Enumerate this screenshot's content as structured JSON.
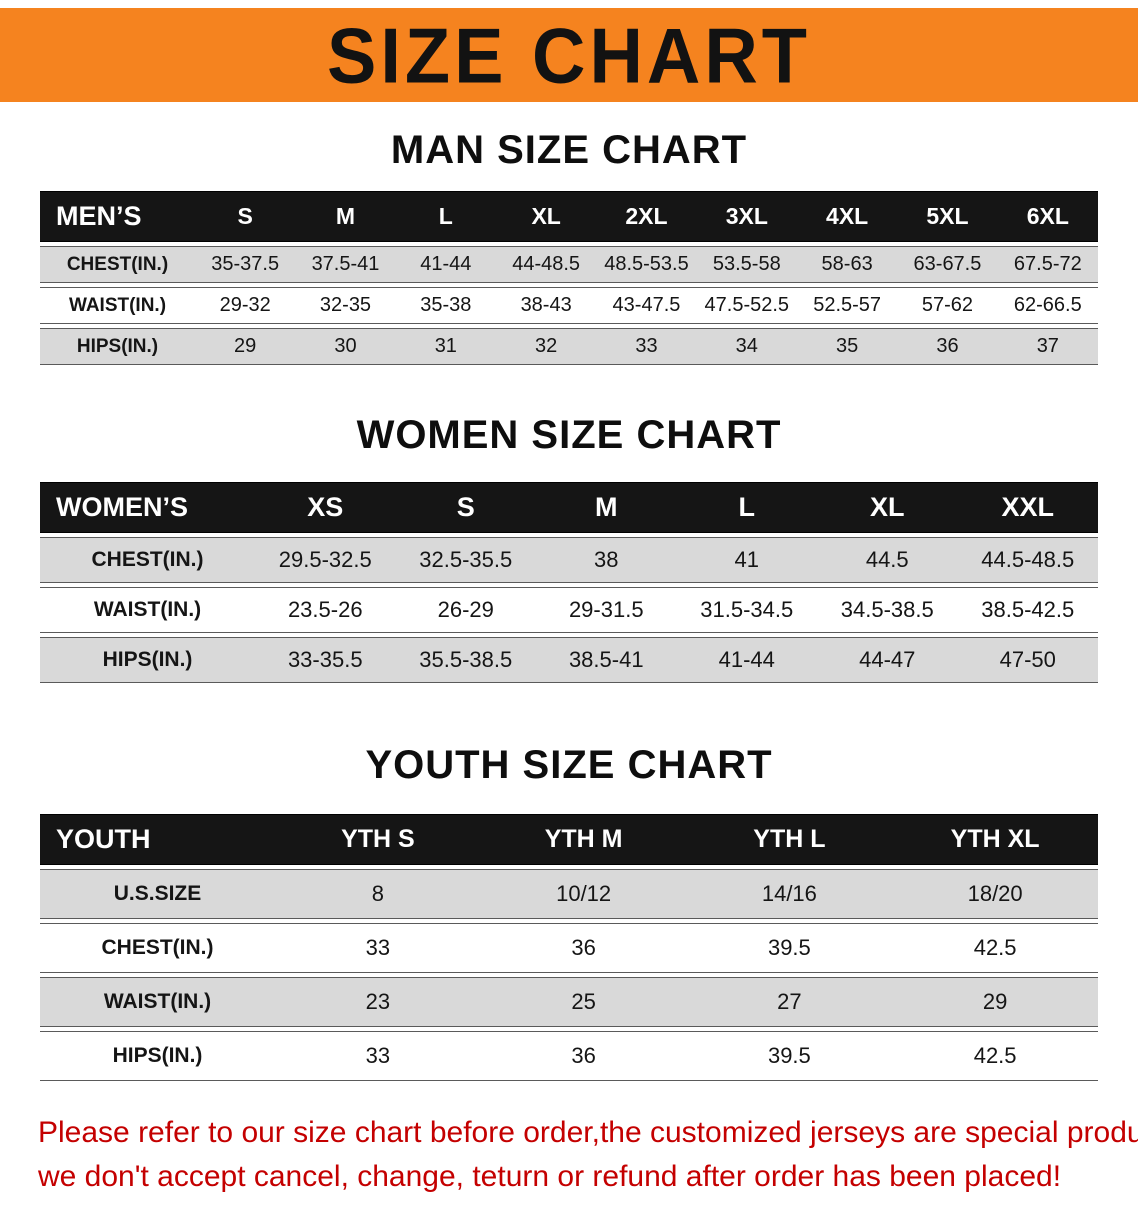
{
  "banner": {
    "title": "SIZE CHART"
  },
  "colors": {
    "banner_bg": "#f5831f",
    "table_header_bg": "#151515",
    "row_alt_bg": "#d9d9d9",
    "note_text": "#c40000"
  },
  "men": {
    "heading": "MAN SIZE CHART",
    "corner": "MEN’S",
    "columns": [
      "S",
      "M",
      "L",
      "XL",
      "2XL",
      "3XL",
      "4XL",
      "5XL",
      "6XL"
    ],
    "rows": [
      {
        "label": "CHEST(IN.)",
        "values": [
          "35-37.5",
          "37.5-41",
          "41-44",
          "44-48.5",
          "48.5-53.5",
          "53.5-58",
          "58-63",
          "63-67.5",
          "67.5-72"
        ]
      },
      {
        "label": "WAIST(IN.)",
        "values": [
          "29-32",
          "32-35",
          "35-38",
          "38-43",
          "43-47.5",
          "47.5-52.5",
          "52.5-57",
          "57-62",
          "62-66.5"
        ]
      },
      {
        "label": "HIPS(IN.)",
        "values": [
          "29",
          "30",
          "31",
          "32",
          "33",
          "34",
          "35",
          "36",
          "37"
        ]
      }
    ]
  },
  "women": {
    "heading": "WOMEN SIZE CHART",
    "corner": "WOMEN’S",
    "columns": [
      "XS",
      "S",
      "M",
      "L",
      "XL",
      "XXL"
    ],
    "rows": [
      {
        "label": "CHEST(IN.)",
        "values": [
          "29.5-32.5",
          "32.5-35.5",
          "38",
          "41",
          "44.5",
          "44.5-48.5"
        ]
      },
      {
        "label": "WAIST(IN.)",
        "values": [
          "23.5-26",
          "26-29",
          "29-31.5",
          "31.5-34.5",
          "34.5-38.5",
          "38.5-42.5"
        ]
      },
      {
        "label": "HIPS(IN.)",
        "values": [
          "33-35.5",
          "35.5-38.5",
          "38.5-41",
          "41-44",
          "44-47",
          "47-50"
        ]
      }
    ]
  },
  "youth": {
    "heading": "YOUTH SIZE CHART",
    "corner": "YOUTH",
    "columns": [
      "YTH S",
      "YTH M",
      "YTH L",
      "YTH XL"
    ],
    "rows": [
      {
        "label": "U.S.SIZE",
        "values": [
          "8",
          "10/12",
          "14/16",
          "18/20"
        ]
      },
      {
        "label": "CHEST(IN.)",
        "values": [
          "33",
          "36",
          "39.5",
          "42.5"
        ]
      },
      {
        "label": "WAIST(IN.)",
        "values": [
          "23",
          "25",
          "27",
          "29"
        ]
      },
      {
        "label": "HIPS(IN.)",
        "values": [
          "33",
          "36",
          "39.5",
          "42.5"
        ]
      }
    ]
  },
  "footer": {
    "line1": "Please refer to our size chart before order,the customized jerseys are special products,",
    "line2": "we don't accept cancel, change, teturn or refund after order has been placed!"
  }
}
